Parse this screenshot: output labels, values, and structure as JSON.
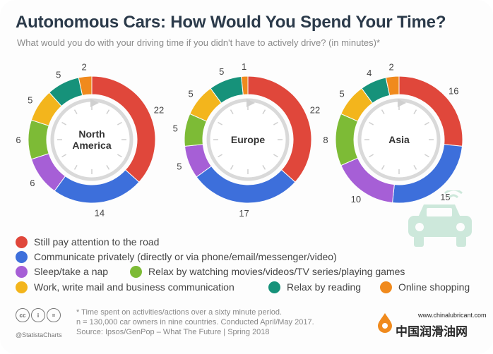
{
  "title": "Autonomous Cars: How Would You Spend Your Time?",
  "subtitle": "What would you do with your driving time if you didn't have to actively drive? (in minutes)*",
  "colors": {
    "road": "#e0473b",
    "communicate": "#3d6fdb",
    "sleep": "#a65fd6",
    "movies": "#7dbb36",
    "work": "#f3b51c",
    "reading": "#16927a",
    "shopping": "#f08a1d"
  },
  "chart_data": {
    "type": "pie",
    "variant": "donut",
    "unit": "minutes",
    "categories": [
      "Still pay attention to the road",
      "Communicate privately (directly or via phone/email/messenger/video)",
      "Sleep/take a nap",
      "Relax by watching movies/videos/TV series/playing games",
      "Work, write mail and business communication",
      "Relax by reading",
      "Online shopping"
    ],
    "series": [
      {
        "name": "North America",
        "label_lines": [
          "North",
          "America"
        ],
        "values": [
          22,
          14,
          6,
          6,
          5,
          5,
          2
        ]
      },
      {
        "name": "Europe",
        "label_lines": [
          "Europe"
        ],
        "values": [
          22,
          17,
          5,
          5,
          5,
          5,
          1
        ]
      },
      {
        "name": "Asia",
        "label_lines": [
          "Asia"
        ],
        "values": [
          16,
          15,
          10,
          8,
          5,
          4,
          2
        ]
      }
    ],
    "legend_position": "bottom"
  },
  "legend": {
    "items": [
      "Still pay attention to the road",
      "Communicate privately (directly or via phone/email/messenger/video)",
      "Sleep/take a nap",
      "Relax by watching movies/videos/TV series/playing games",
      "Work, write mail and business communication",
      "Relax by reading",
      "Online shopping"
    ]
  },
  "footer": {
    "note_1": "* Time spent on activities/actions over a sixty minute period.",
    "note_2": "n = 130,000 car owners in nine countries. Conducted April/May 2017.",
    "source": "Source: Ipsos/GenPop – What The Future | Spring 2018",
    "handle": "@StatistaCharts",
    "license_icons": [
      "cc",
      "i",
      "="
    ]
  },
  "watermark": {
    "url": "www.chinalubricant.com",
    "brand": "中国润滑油网"
  }
}
